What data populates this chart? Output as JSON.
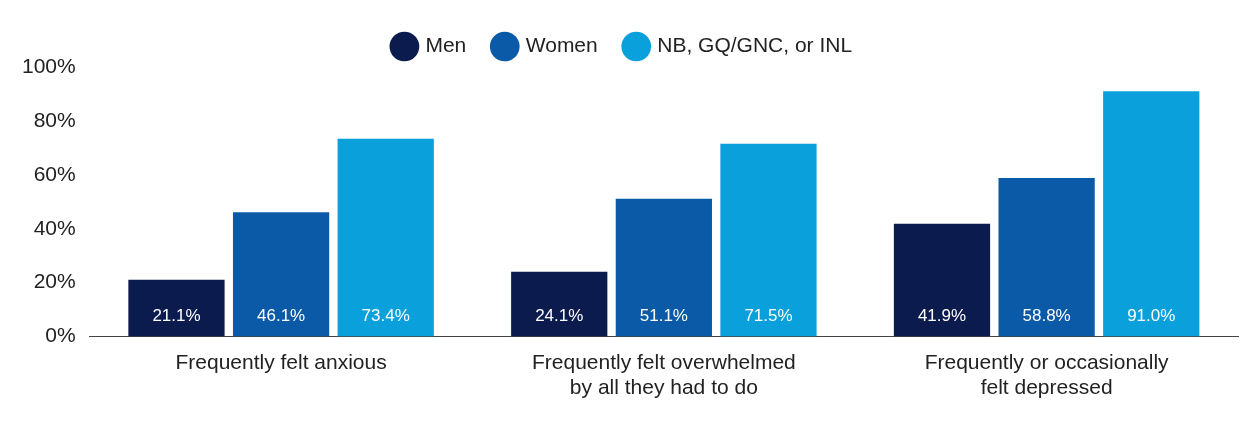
{
  "chart_data": {
    "type": "bar",
    "categories": [
      "Frequently felt anxious",
      "Frequently felt overwhelmed by all they had to do",
      "Frequently or occasionally felt depressed"
    ],
    "series": [
      {
        "name": "Men",
        "color": "#0b1b4d",
        "values": [
          21.1,
          24.1,
          41.9
        ],
        "value_labels": [
          "21.1%",
          "24.1%",
          "41.9%"
        ]
      },
      {
        "name": "Women",
        "color": "#0a5aa8",
        "values": [
          46.1,
          51.1,
          58.8
        ],
        "value_labels": [
          "46.1%",
          "51.1%",
          "58.8%"
        ]
      },
      {
        "name": "NB, GQ/GNC, or INL",
        "color": "#0aa0dc",
        "values": [
          73.4,
          71.5,
          91.0
        ],
        "value_labels": [
          "73.4%",
          "71.5%",
          "91.0%"
        ]
      }
    ],
    "ylim": [
      0,
      100
    ],
    "yticks": [
      {
        "value": 0,
        "label": "0%"
      },
      {
        "value": 20,
        "label": "20%"
      },
      {
        "value": 40,
        "label": "40%"
      },
      {
        "value": 60,
        "label": "60%"
      },
      {
        "value": 80,
        "label": "80%"
      },
      {
        "value": 100,
        "label": "100%"
      }
    ],
    "grid": false,
    "legend": "top"
  }
}
